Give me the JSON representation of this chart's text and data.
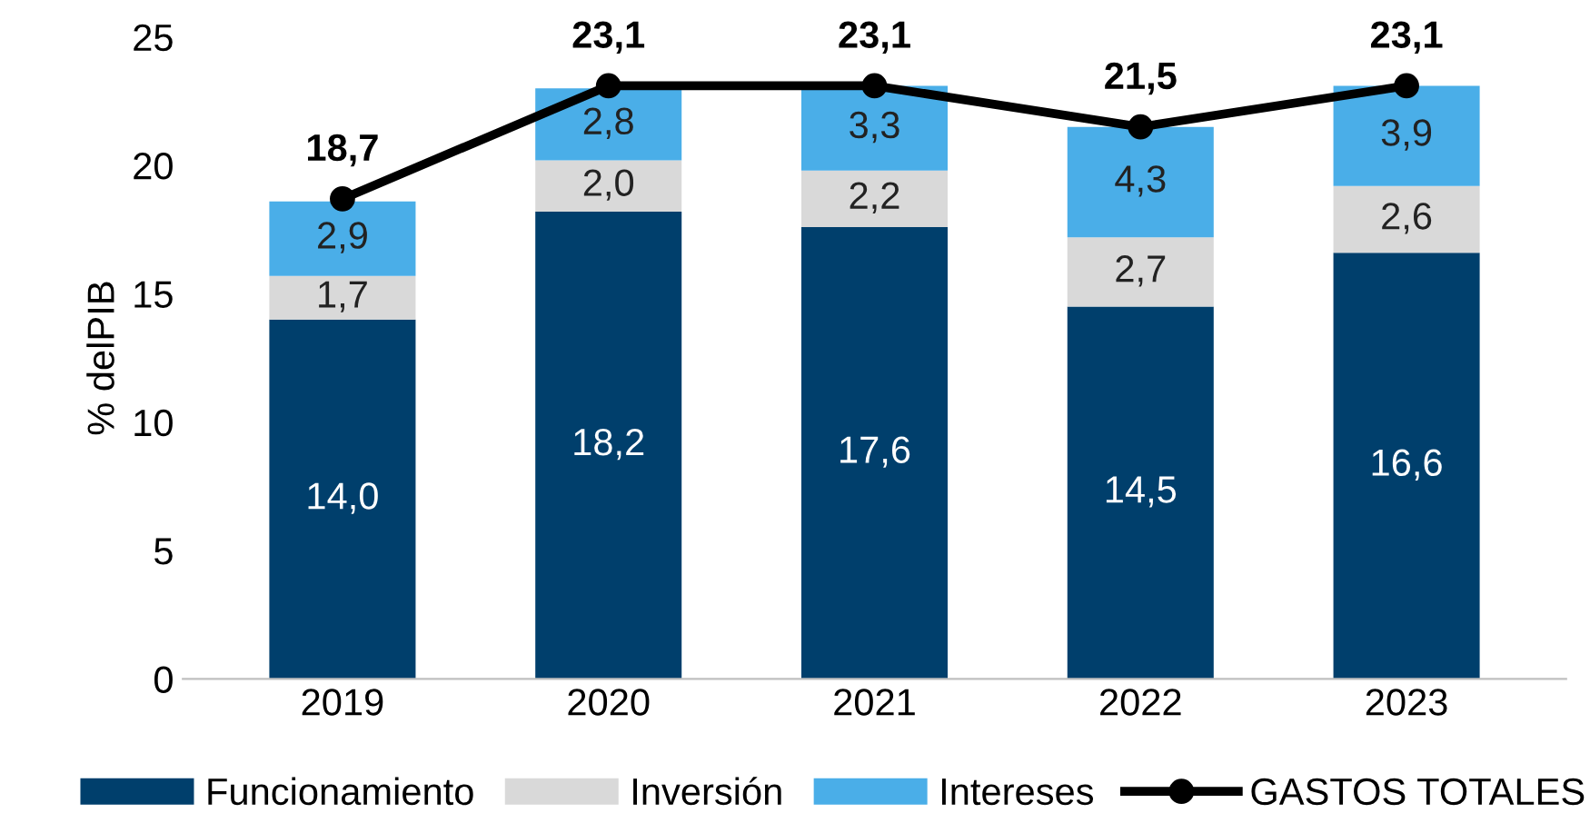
{
  "chart_data": {
    "type": "bar",
    "stacked": true,
    "ylabel": "% delPIB",
    "categories": [
      "2019",
      "2020",
      "2021",
      "2022",
      "2023"
    ],
    "ylim": [
      0,
      25
    ],
    "yticks": [
      0,
      5,
      10,
      15,
      20,
      25
    ],
    "grid": false,
    "legend": "bottom",
    "series": [
      {
        "name": "Funcionamiento",
        "color": "#003f6c",
        "values": [
          14.0,
          18.2,
          17.6,
          14.5,
          16.6
        ],
        "value_labels": [
          "14,0",
          "18,2",
          "17,6",
          "14,5",
          "16,6"
        ]
      },
      {
        "name": "Inversión",
        "color": "#d9d9d9",
        "values": [
          1.7,
          2.0,
          2.2,
          2.7,
          2.6
        ],
        "value_labels": [
          "1,7",
          "2,0",
          "2,2",
          "2,7",
          "2,6"
        ]
      },
      {
        "name": "Intereses",
        "color": "#4aaee8",
        "values": [
          2.9,
          2.8,
          3.3,
          4.3,
          3.9
        ],
        "value_labels": [
          "2,9",
          "2,8",
          "3,3",
          "4,3",
          "3,9"
        ]
      },
      {
        "name": "GASTOS TOTALES",
        "type": "line",
        "color": "#000000",
        "marker": "circle",
        "values": [
          18.7,
          23.1,
          23.1,
          21.5,
          23.1
        ],
        "value_labels": [
          "18,7",
          "23,1",
          "23,1",
          "21,5",
          "23,1"
        ]
      }
    ]
  }
}
